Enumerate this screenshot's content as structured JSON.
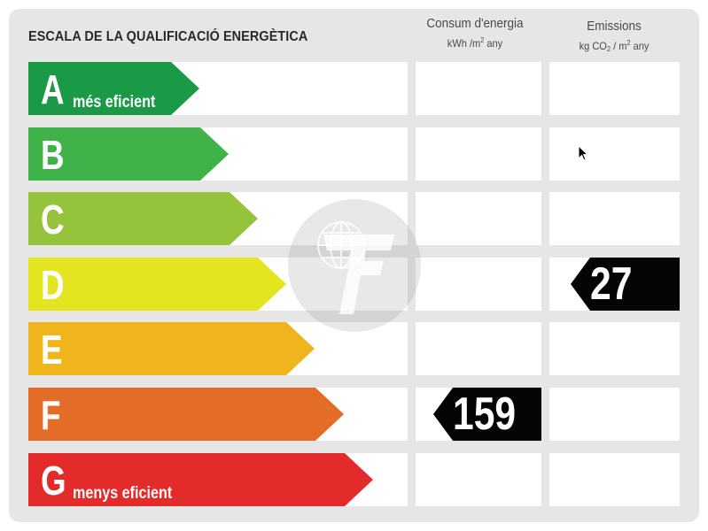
{
  "title": "ESCALA DE LA QUALIFICACIÓ ENERGÈTICA",
  "columns": {
    "consumption": {
      "heading": "Consum d'energia",
      "unit_main": "kWh /m",
      "unit_exp": "2",
      "unit_tail": " any"
    },
    "emissions": {
      "heading": "Emissions",
      "unit_a": "kg CO",
      "unit_sub": "2",
      "unit_b": " / m",
      "unit_exp": "2",
      "unit_c": " any"
    }
  },
  "grades": [
    {
      "letter": "A",
      "note": "més eficient",
      "color": "#1a9a46"
    },
    {
      "letter": "B",
      "note": "",
      "color": "#3fb34a"
    },
    {
      "letter": "C",
      "note": "",
      "color": "#95c43c"
    },
    {
      "letter": "D",
      "note": "",
      "color": "#e4e521"
    },
    {
      "letter": "E",
      "note": "",
      "color": "#f0b41c"
    },
    {
      "letter": "F",
      "note": "",
      "color": "#e36d27"
    },
    {
      "letter": "G",
      "note": "menys eficient",
      "color": "#e32b2b"
    }
  ],
  "ratings": {
    "consumption": {
      "grade": "F",
      "value": "159"
    },
    "emissions": {
      "grade": "D",
      "value": "27"
    }
  },
  "icons": {
    "watermark": "logo-watermark-icon",
    "cursor": "mouse-pointer-icon"
  }
}
